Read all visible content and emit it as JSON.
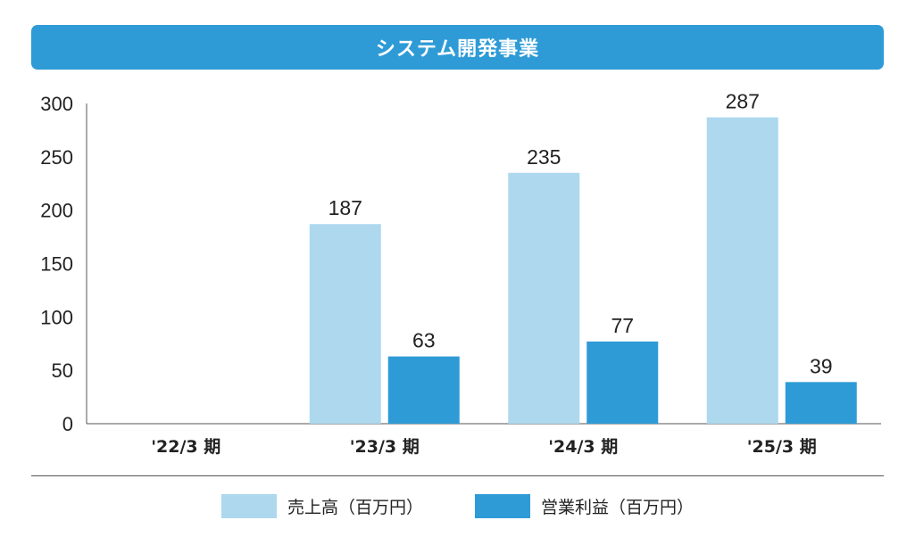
{
  "chart_data": {
    "type": "bar",
    "title": "システム開発事業",
    "categories": [
      "'22/3 期",
      "'23/3 期",
      "'24/3 期",
      "'25/3 期"
    ],
    "series": [
      {
        "name": "売上高（百万円）",
        "values": [
          null,
          187,
          235,
          287
        ],
        "color": "#add8ee"
      },
      {
        "name": "営業利益（百万円）",
        "values": [
          null,
          63,
          77,
          39
        ],
        "color": "#2e9bd6"
      }
    ],
    "ylim": [
      0,
      300
    ],
    "yticks": [
      0,
      50,
      100,
      150,
      200,
      250,
      300
    ],
    "xlabel": "",
    "ylabel": "",
    "grid": false,
    "legend": "bottom-center"
  }
}
